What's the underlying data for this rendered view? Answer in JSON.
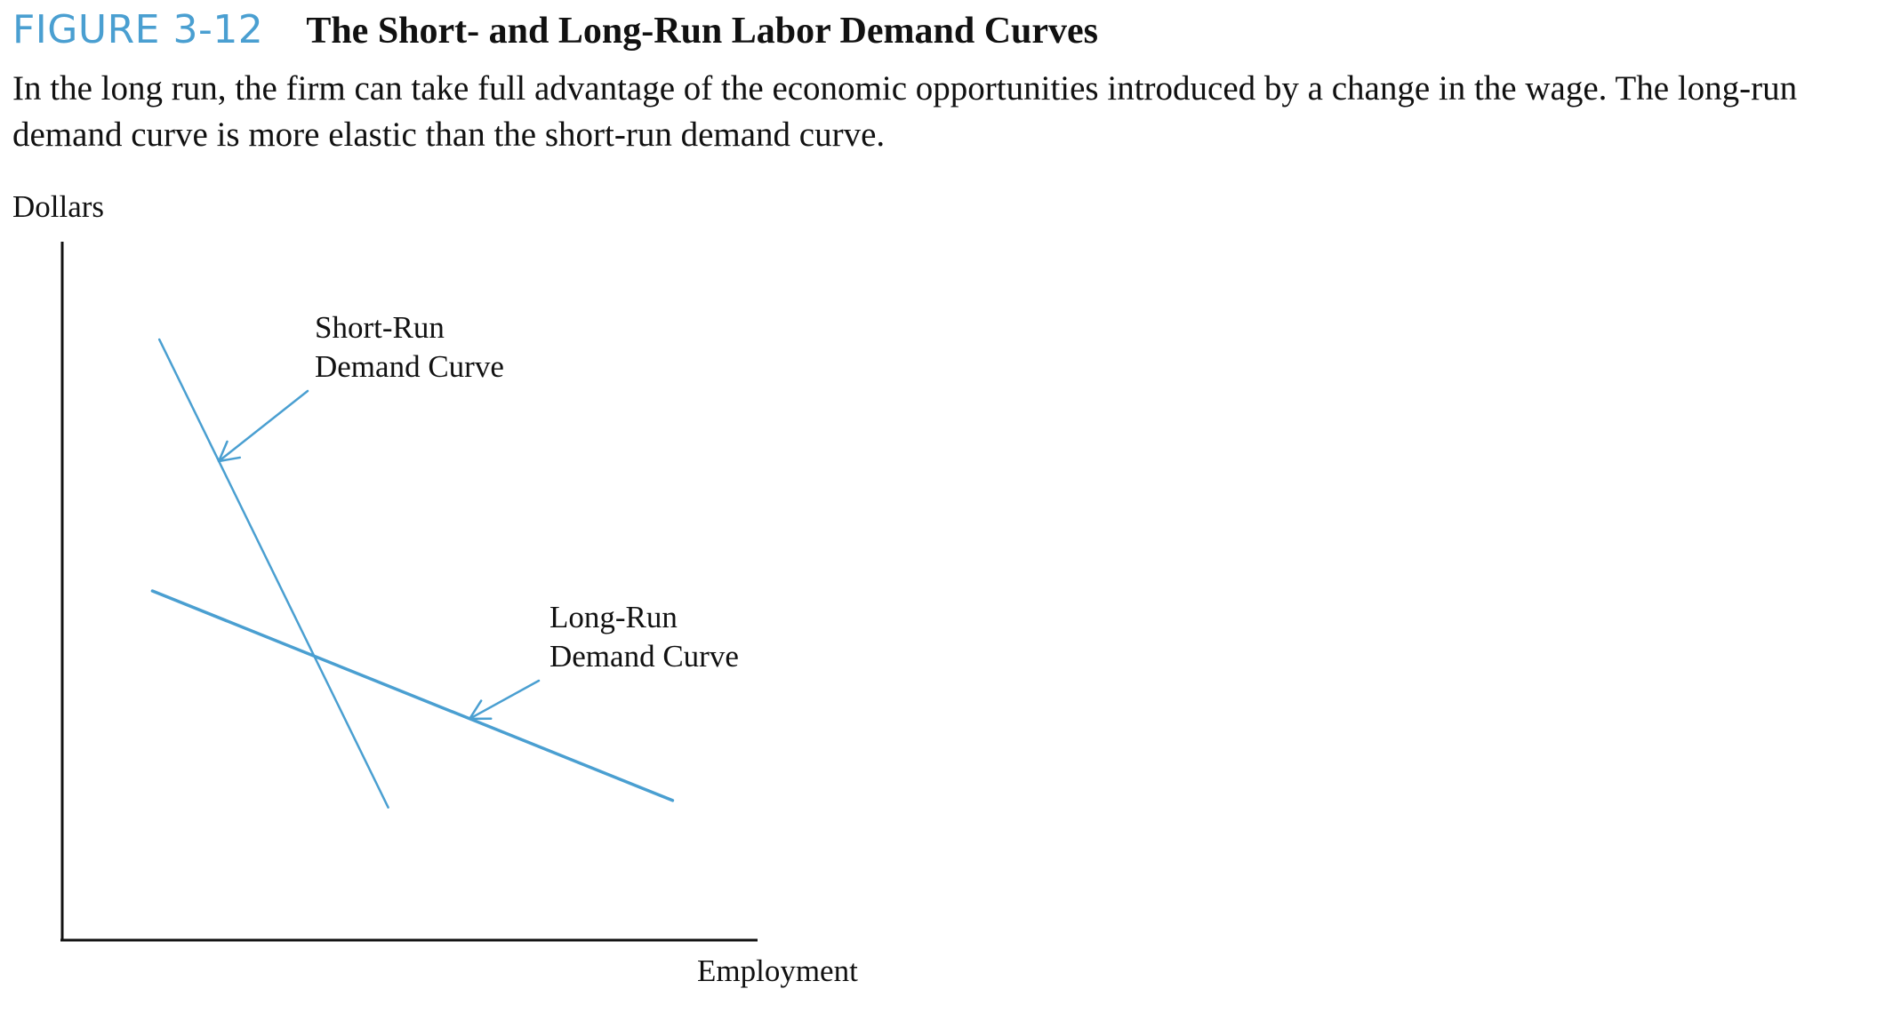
{
  "figure": {
    "number": "FIGURE 3-12",
    "title": "The Short- and Long-Run Labor Demand Curves",
    "caption": "In the long run, the firm can take full advantage of the economic opportunities introduced by a change in the wage. The long-run demand curve is more elastic than the short-run demand curve."
  },
  "colors": {
    "accent": "#4a9fd1",
    "curve": "#4a9fd1",
    "axis": "#111111",
    "text": "#111111"
  },
  "chart_data": {
    "type": "line",
    "title": "",
    "xlabel": "Employment",
    "ylabel": "Dollars",
    "xlim": [
      0,
      100
    ],
    "ylim": [
      0,
      100
    ],
    "grid": false,
    "legend": "none",
    "series": [
      {
        "name": "Short-Run Demand Curve",
        "label_lines": [
          "Short-Run",
          "Demand Curve"
        ],
        "x": [
          14,
          47
        ],
        "y": [
          86,
          19
        ]
      },
      {
        "name": "Long-Run Demand Curve",
        "label_lines": [
          "Long-Run",
          "Demand Curve"
        ],
        "x": [
          13,
          88
        ],
        "y": [
          50,
          20
        ]
      }
    ]
  }
}
